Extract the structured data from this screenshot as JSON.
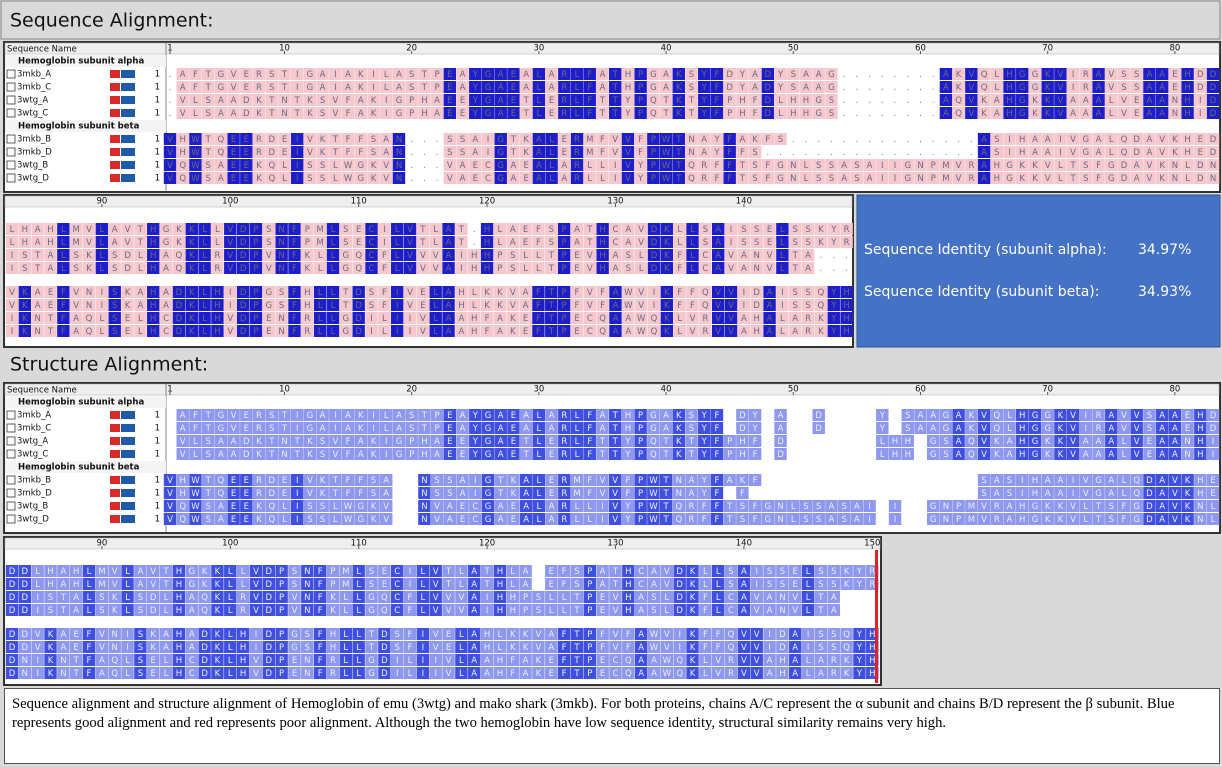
{
  "sequence_alignment": {
    "title": "Sequence Alignment:",
    "header": {
      "name": "Sequence Name",
      "ruler": [
        1,
        10,
        20,
        30,
        40,
        50,
        60,
        70,
        80
      ]
    },
    "groups": [
      {
        "label": "Hemoglobin subunit alpha",
        "rows": [
          {
            "name": "3mkb_A",
            "start": 1,
            "residues": ".AFTGVERSTIGAIAKILASTPEAYGAEALARLFATHPGAKSYFDYADYSAAG........AKVQLHGGKVIRAVSSAAEHDD"
          },
          {
            "name": "3mkb_C",
            "start": 1,
            "residues": ".AFTGVERSTIGAIAKILASTPEAYGAEALARLFATHPGAKSYFDYADYSAAG........AKVQLHGGKVIRAVSSAAEHDD"
          },
          {
            "name": "3wtg_A",
            "start": 1,
            "residues": ".VLSAADKTNTKSVFAKIGPHAEEYGAETLERLFTTYPQTKTYFPHFDLHHGS........AQVKAHGKKVAAALVEAANHID"
          },
          {
            "name": "3wtg_C",
            "start": 1,
            "residues": ".VLSAADKTNTKSVFAKIGPHAEEYGAETLERLFTTYPQTKTYFPHFDLHHGS........AQVKAHGKKVAAALVEAANHID"
          }
        ]
      },
      {
        "label": "Hemoglobin subunit beta",
        "rows": [
          {
            "name": "3mkb_B",
            "start": 1,
            "residues": "VHWTQEERDEIVKTFFSAN...SSAIGTKALERMFVVFPWTNAYFAKFS...............ASIHAAIVGALQDAVKHED"
          },
          {
            "name": "3mkb_D",
            "start": 1,
            "residues": "VHWTQEERDEIVKTFFSAN...SSAIGTKALERMFVVFPWTNAYFFS.................ASIHAAIVGALQDAVKHED"
          },
          {
            "name": "3wtg_B",
            "start": 1,
            "residues": "VQWSAEEKQLISSLWGKVN...VAECGAEALARLLIVYPWTQRFFTSFGNLSSASAIIGNPMVRAHGKKVLTSFGDAVKNLDN"
          },
          {
            "name": "3wtg_D",
            "start": 1,
            "residues": "VQWSAEEKQLISSLWGKVN...VAECGAEALARLLIVYPWTQRFFTSFGNLSSASAIIGNPMVRAHGKKVLTSFGDAVKNLDN"
          }
        ]
      }
    ],
    "continuation": {
      "ruler": [
        90,
        100,
        110,
        120,
        130,
        140
      ],
      "rows": [
        "LHAHLMVLAVTHGKKLLVDPSNFPMLSECILVTLAT.HLAEFSPATHCAVDKLLSAISSELSSKYR",
        "LHAHLMVLAVTHGKKLLVDPSNFPMLSECILVTLAT.HLAEFSPATHCAVDKLLSAISSELSSKYR",
        "ISTALSKLSDLHAQKLRVDPVNFKLLGQCFLVVVAIHHPSLLTPEVHASLDKFLCAVANVLTA...",
        "ISTALSKLSDLHAQKLRVDPVNFKLLGQCFLVVVAIHHPSLLTPEVHASLDKFLCAVANVLTA...",
        "VKAEFVNISKAHADKLHIDPGSFHLLTDSFIVELAHLKKVAFTPFVFAWVIKFFQVVIDAISSQYH",
        "VKAEFVNISKAHADKLHIDPGSFHLLTDSFIVELAHLKKVAFTPFVFAWVIKFFQVVIDAISSQYH",
        "IKNTFAQLSELHCDKLHVDPENFRLLGDILIIVLAAHFAKEFTPECQAAWQKLVRVVAHALARKYH",
        "IKNTFAQLSELHCDKLHVDPENFRLLGDILIIVLAAHFAKEFTPECQAAWQKLVRVVAHALARKYH"
      ]
    }
  },
  "identity": {
    "alpha_label": "Sequence Identity (subunit alpha):",
    "alpha_value": "34.97%",
    "beta_label": "Sequence Identity (subunit beta):",
    "beta_value": "34.93%"
  },
  "structure_alignment": {
    "title": "Structure Alignment:",
    "header": {
      "name": "Sequence Name",
      "ruler": [
        1,
        10,
        20,
        30,
        40,
        50,
        60,
        70,
        80
      ]
    },
    "groups": [
      {
        "label": "Hemoglobin subunit alpha",
        "rows": [
          {
            "name": "3mkb_A",
            "start": 1,
            "residues": ".AFTGVERSTIGAIAKILASTPEAYGAEALARLFATHPGAKSYF.DY.A..D....Y.SAAGAKVQLHGGKVIRAVVSAAEHD"
          },
          {
            "name": "3mkb_C",
            "start": 1,
            "residues": ".AFTGVERSTIGAIAKILASTPEAYGAEALARLFATHPGAKSYF.DY.A..D....Y.SAAGAKVQLHGGKVIRAVVSAAEHD"
          },
          {
            "name": "3wtg_A",
            "start": 1,
            "residues": ".VLSAADKTNTKSVFAKIGPHAEEYGAETLERLFTTYPQTKTYFPHF.D.......LHH.GSAQVKAHGKKVAAALVEAANHI"
          },
          {
            "name": "3wtg_C",
            "start": 1,
            "residues": ".VLSAADKTNTKSVFAKIGPHAEEYGAETLERLFTTYPQTKTYFPHF.D.......LHH.GSAQVKAHGKKVAAALVEAANHI"
          }
        ]
      },
      {
        "label": "Hemoglobin subunit beta",
        "rows": [
          {
            "name": "3mkb_B",
            "start": 1,
            "residues": "VHWTQEERDEIVKTFFSA..NSSAIGTKALERMFVVFPWTNAYFAKF.................SASIHAAIVGALQDAVKHE"
          },
          {
            "name": "3mkb_D",
            "start": 1,
            "residues": "VHWTQEERDEIVKTFFSA..NSSAIGTKALERMFVVFPWTNAYF.F..................SASIHAAIVGALQDAVKHE"
          },
          {
            "name": "3wtg_B",
            "start": 1,
            "residues": "VQWSAEEKQLISSLWGKV..NVAECGAEALARLLIVYPWTQRFFTSFGNLSSASAI.I..GNPMVRAHGKKVLTSFGDAVKNL"
          },
          {
            "name": "3wtg_D",
            "start": 1,
            "residues": "VQWSAEEKQLISSLWGKV..NVAECGAEALARLLIVYPWTQRFFTSFGNLSSASAI.I..GNPMVRAHGKKVLTSFGDAVKNL"
          }
        ]
      }
    ],
    "continuation": {
      "ruler": [
        90,
        100,
        110,
        120,
        130,
        140,
        150
      ],
      "rows": [
        "DDLHAHLMVLAVTHGKKLLVDPSNFPMLSECILVTLATHLA.EFSPATHCAVDKLLSAISSELSSKYR",
        "DDLHAHLMVLAVTHGKKLLVDPSNFPMLSECILVTLATHLA.EFSPATHCAVDKLLSAISSELSSKYR",
        "DDISTALSKLSDLHAQKLRVDPVNFKLLGQCFLVVVAIHHPSLLTPEVHASLDKFLCAVANVLTA...",
        "DDISTALSKLSDLHAQKLRVDPVNFKLLGQCFLVVVAIHHPSLLTPEVHASLDKFLCAVANVLTA...",
        "DDVKAEFVNISKAHADKLHIDPGSFHLLTDSFIVELAHLKKVAFTPFVFAWVIKFFQVVIDAISSQYH",
        "DDVKAEFVNISKAHADKLHIDPGSFHLLTDSFIVELAHLKKVAFTPFVFAWVIKFFQVVIDAISSQYH",
        "DNIKNTFAQLSELHCDKLHVDPENFRLLGDILIIVLAAHFAKEFTPECQAAWQKLVRVVAHALARKYH",
        "DNIKNTFAQLSELHCDKLHVDPENFRLLGDILIIVLAAHFAKEFTPECQAAWQKLVRVVAHALARKYH"
      ]
    }
  },
  "caption": "Sequence alignment and structure alignment of Hemoglobin of emu (3wtg) and mako shark (3mkb). For both proteins, chains A/C represent the α subunit and chains B/D represent the β subunit. Blue represents good alignment and red represents poor alignment. Although the two hemoglobin have low sequence identity, structural similarity remains very high."
}
